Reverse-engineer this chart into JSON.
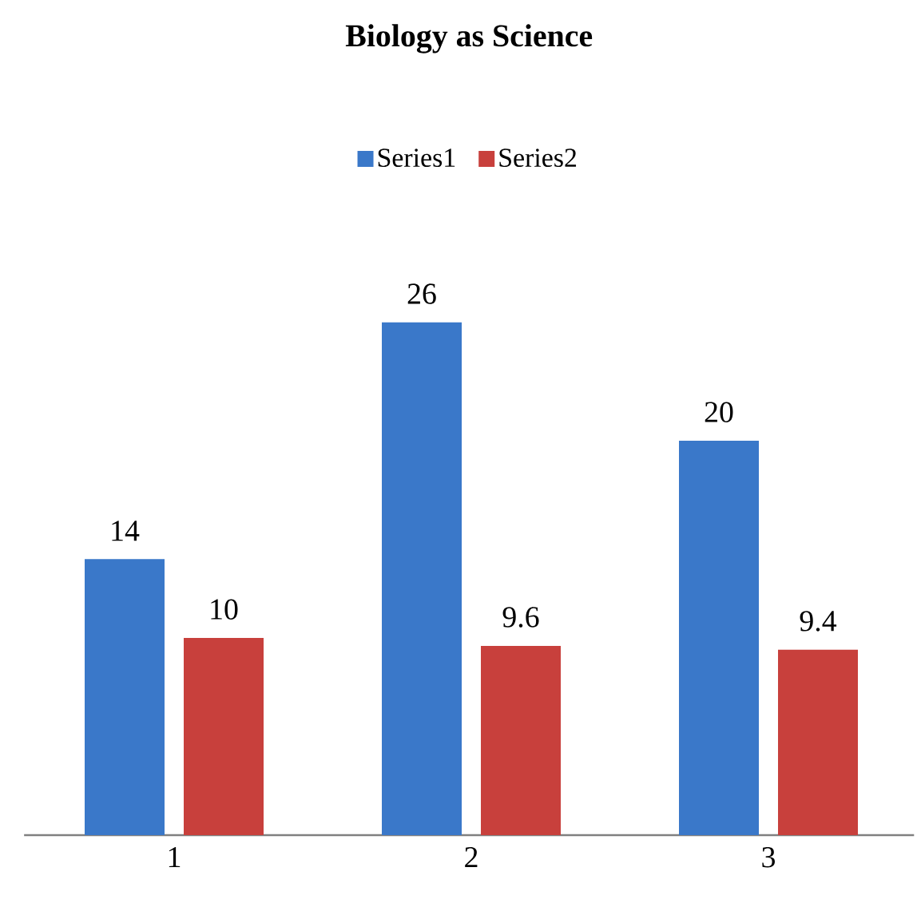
{
  "chart_data": {
    "type": "bar",
    "title": "Biology as Science",
    "categories": [
      "1",
      "2",
      "3"
    ],
    "series": [
      {
        "name": "Series1",
        "color": "#3a78c9",
        "values": [
          14,
          26,
          20
        ]
      },
      {
        "name": "Series2",
        "color": "#c8403c",
        "values": [
          10,
          9.6,
          9.4
        ]
      }
    ],
    "data_labels": true,
    "legend": "top"
  }
}
